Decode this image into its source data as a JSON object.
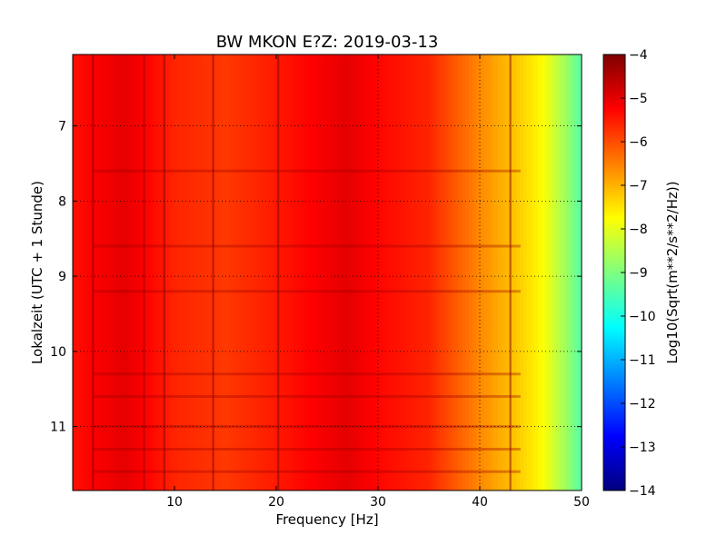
{
  "chart_data": {
    "type": "heatmap",
    "title": "BW MKON E?Z: 2019-03-13",
    "xlabel": "Frequency [Hz]",
    "ylabel": "Lokalzeit (UTC + 1 Stunde)",
    "colorbar_label": "Log10(Sqrt(m**2/s**2/Hz))",
    "xlim": [
      0,
      50
    ],
    "ylim": [
      11.85,
      6.05
    ],
    "y_inverted": true,
    "xticks": [
      10,
      20,
      30,
      40,
      50
    ],
    "yticks": [
      7,
      8,
      9,
      10,
      11
    ],
    "clim": [
      -14,
      -4
    ],
    "cticks": [
      -4,
      -5,
      -6,
      -7,
      -8,
      -9,
      -10,
      -11,
      -12,
      -13,
      -14
    ],
    "colormap": "jet",
    "grid": true,
    "grid_x_at": [
      30,
      40
    ],
    "grid_y_at": [
      7,
      8,
      9,
      10,
      11
    ],
    "spectrum_profile": {
      "frequency_hz": [
        0,
        5,
        10,
        15,
        20,
        24,
        27,
        30,
        35,
        37,
        40,
        43,
        46,
        48,
        50
      ],
      "log_amplitude": [
        -5.4,
        -5.0,
        -5.6,
        -5.8,
        -5.5,
        -5.2,
        -5.0,
        -5.3,
        -5.6,
        -6.0,
        -6.6,
        -7.1,
        -7.7,
        -8.5,
        -9.4
      ]
    },
    "dark_lines_hz": [
      2,
      7,
      9,
      13.8,
      20.2,
      43
    ],
    "dark_time_bands_h": [
      7.6,
      8.6,
      9.2,
      10.3,
      10.6,
      11.0,
      11.3,
      11.6
    ]
  },
  "colors": {
    "jet": [
      "#00007f",
      "#0000ff",
      "#007fff",
      "#00ffff",
      "#7fff7f",
      "#ffff00",
      "#ff7f00",
      "#ff0000",
      "#7f0000"
    ]
  }
}
